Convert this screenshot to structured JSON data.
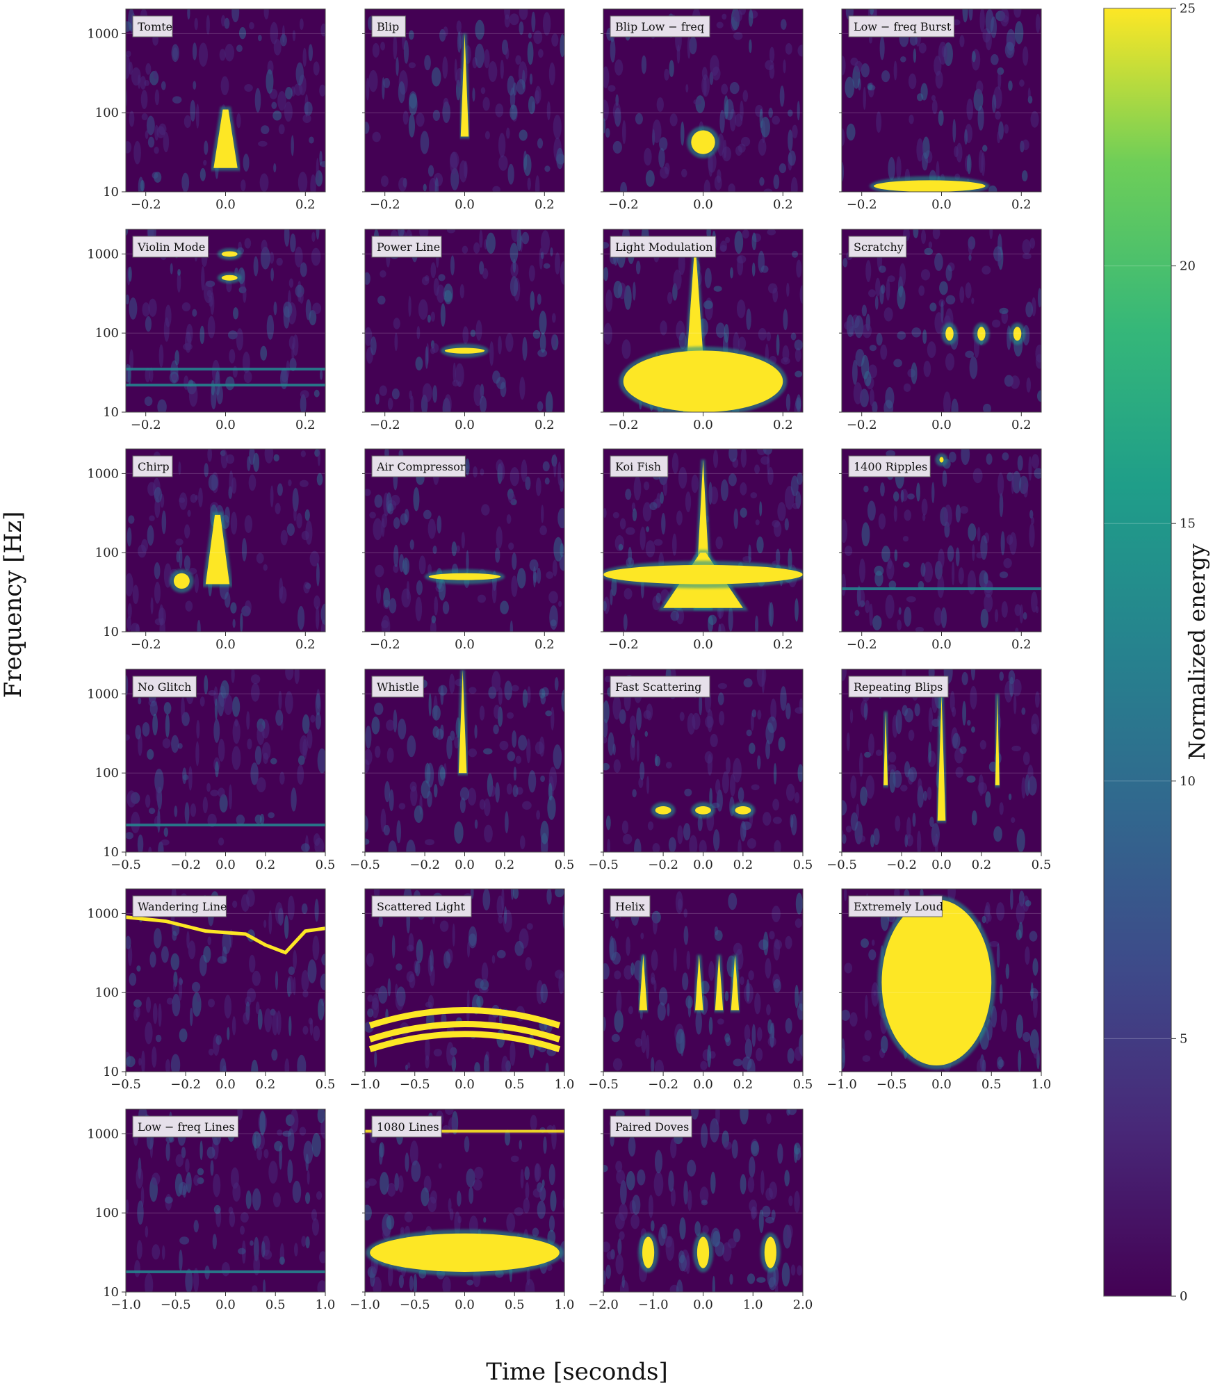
{
  "figure": {
    "xlabel": "Time [seconds]",
    "ylabel": "Frequency [Hz]",
    "colorbar": {
      "label": "Normalized energy",
      "range": [
        0,
        25
      ],
      "ticks": [
        "0",
        "5",
        "10",
        "15",
        "20",
        "25"
      ],
      "colormap": "viridis"
    },
    "colors": {
      "low": "#440154",
      "mid": "#21918c",
      "high": "#fde725"
    }
  },
  "chart_data": {
    "type": "heatmap",
    "yscale": "log",
    "ylim": [
      10,
      2048
    ],
    "yticks": [
      "10",
      "100",
      "1000"
    ],
    "grid": true,
    "panels": [
      {
        "label": "Tomte",
        "xticks": [
          "−0.2",
          "0.0",
          "0.2"
        ],
        "xlim": [
          -0.25,
          0.25
        ],
        "blobs": [
          {
            "t": 0.0,
            "f0": 20,
            "f1": 110,
            "w": 0.03,
            "shape": "tri"
          }
        ]
      },
      {
        "label": "Blip",
        "xticks": [
          "−0.2",
          "0.0",
          "0.2"
        ],
        "xlim": [
          -0.25,
          0.25
        ],
        "blobs": [
          {
            "t": 0.0,
            "f0": 50,
            "f1": 1000,
            "w": 0.01,
            "shape": "spike"
          }
        ]
      },
      {
        "label": "Blip Low − freq",
        "xticks": [
          "−0.2",
          "0.0",
          "0.2"
        ],
        "xlim": [
          -0.25,
          0.25
        ],
        "blobs": [
          {
            "t": 0.0,
            "f0": 30,
            "f1": 60,
            "w": 0.03,
            "shape": "ellipse"
          }
        ]
      },
      {
        "label": "Low − freq Burst",
        "xticks": [
          "−0.2",
          "0.0",
          "0.2"
        ],
        "xlim": [
          -0.25,
          0.25
        ],
        "blobs": [
          {
            "t": -0.03,
            "f0": 10,
            "f1": 14,
            "w": 0.14,
            "shape": "ellipse"
          }
        ]
      },
      {
        "label": "Violin Mode",
        "xticks": [
          "−0.2",
          "0.0",
          "0.2"
        ],
        "xlim": [
          -0.25,
          0.25
        ],
        "blobs": [
          {
            "t": 0.01,
            "f0": 950,
            "f1": 1050,
            "w": 0.02,
            "shape": "ellipse"
          },
          {
            "t": 0.01,
            "f0": 480,
            "f1": 520,
            "w": 0.02,
            "shape": "ellipse"
          }
        ],
        "lines": [
          35,
          22
        ]
      },
      {
        "label": "Power Line",
        "xticks": [
          "−0.2",
          "0.0",
          "0.2"
        ],
        "xlim": [
          -0.25,
          0.25
        ],
        "blobs": [
          {
            "t": 0.0,
            "f0": 55,
            "f1": 65,
            "w": 0.05,
            "shape": "ellipse"
          }
        ]
      },
      {
        "label": "Light Modulation",
        "xticks": [
          "−0.2",
          "0.0",
          "0.2"
        ],
        "xlim": [
          -0.25,
          0.25
        ],
        "blobs": [
          {
            "t": -0.02,
            "f0": 10,
            "f1": 1500,
            "w": 0.03,
            "shape": "spike"
          },
          {
            "t": 0.0,
            "f0": 10,
            "f1": 60,
            "w": 0.2,
            "shape": "ellipse"
          }
        ]
      },
      {
        "label": "Scratchy",
        "xticks": [
          "−0.2",
          "0.0",
          "0.2"
        ],
        "xlim": [
          -0.25,
          0.25
        ],
        "blobs": [
          {
            "t": 0.02,
            "f0": 80,
            "f1": 120,
            "w": 0.01,
            "shape": "ellipse"
          },
          {
            "t": 0.1,
            "f0": 80,
            "f1": 120,
            "w": 0.01,
            "shape": "ellipse"
          },
          {
            "t": 0.19,
            "f0": 80,
            "f1": 120,
            "w": 0.01,
            "shape": "ellipse"
          }
        ]
      },
      {
        "label": "Chirp",
        "xticks": [
          "−0.2",
          "0.0",
          "0.2"
        ],
        "xlim": [
          -0.25,
          0.25
        ],
        "blobs": [
          {
            "t": -0.02,
            "f0": 40,
            "f1": 300,
            "w": 0.03,
            "shape": "tri"
          },
          {
            "t": -0.11,
            "f0": 35,
            "f1": 55,
            "w": 0.02,
            "shape": "ellipse"
          }
        ]
      },
      {
        "label": "Air Compressor",
        "xticks": [
          "−0.2",
          "0.0",
          "0.2"
        ],
        "xlim": [
          -0.25,
          0.25
        ],
        "blobs": [
          {
            "t": 0.0,
            "f0": 45,
            "f1": 55,
            "w": 0.09,
            "shape": "ellipse"
          }
        ]
      },
      {
        "label": "Koi Fish",
        "xticks": [
          "−0.2",
          "0.0",
          "0.2"
        ],
        "xlim": [
          -0.25,
          0.25
        ],
        "blobs": [
          {
            "t": 0.0,
            "f0": 20,
            "f1": 1500,
            "w": 0.02,
            "shape": "spike"
          },
          {
            "t": 0.0,
            "f0": 20,
            "f1": 100,
            "w": 0.1,
            "shape": "tri"
          },
          {
            "t": 0.0,
            "f0": 40,
            "f1": 70,
            "w": 0.25,
            "shape": "ellipse"
          }
        ]
      },
      {
        "label": "1400 Ripples",
        "xticks": [
          "−0.2",
          "0.0",
          "0.2"
        ],
        "xlim": [
          -0.25,
          0.25
        ],
        "blobs": [
          {
            "t": 0.0,
            "f0": 1400,
            "f1": 1600,
            "w": 0.005,
            "shape": "ellipse"
          }
        ],
        "lines": [
          35
        ]
      },
      {
        "label": "No Glitch",
        "xticks": [
          "−0.5",
          "−0.2",
          "0.0",
          "0.2",
          "0.5"
        ],
        "xlim": [
          -0.5,
          0.5
        ],
        "blobs": [],
        "lines": [
          22
        ]
      },
      {
        "label": "Whistle",
        "xticks": [
          "−0.5",
          "−0.2",
          "0.0",
          "0.2",
          "0.5"
        ],
        "xlim": [
          -0.5,
          0.5
        ],
        "blobs": [
          {
            "t": -0.01,
            "f0": 100,
            "f1": 2000,
            "w": 0.02,
            "shape": "spike"
          }
        ]
      },
      {
        "label": "Fast Scattering",
        "xticks": [
          "−0.5",
          "−0.2",
          "0.0",
          "0.2",
          "0.5"
        ],
        "xlim": [
          -0.5,
          0.5
        ],
        "blobs": [
          {
            "t": -0.2,
            "f0": 30,
            "f1": 38,
            "w": 0.04,
            "shape": "ellipse"
          },
          {
            "t": 0.0,
            "f0": 30,
            "f1": 38,
            "w": 0.04,
            "shape": "ellipse"
          },
          {
            "t": 0.2,
            "f0": 30,
            "f1": 38,
            "w": 0.04,
            "shape": "ellipse"
          }
        ]
      },
      {
        "label": "Repeating Blips",
        "xticks": [
          "−0.5",
          "−0.2",
          "0.0",
          "0.2",
          "0.5"
        ],
        "xlim": [
          -0.5,
          0.5
        ],
        "blobs": [
          {
            "t": -0.28,
            "f0": 70,
            "f1": 600,
            "w": 0.01,
            "shape": "spike"
          },
          {
            "t": 0.0,
            "f0": 25,
            "f1": 1000,
            "w": 0.02,
            "shape": "spike"
          },
          {
            "t": 0.28,
            "f0": 70,
            "f1": 1000,
            "w": 0.01,
            "shape": "spike"
          }
        ]
      },
      {
        "label": "Wandering Line",
        "xticks": [
          "−0.5",
          "−0.2",
          "0.0",
          "0.2",
          "0.5"
        ],
        "xlim": [
          -0.5,
          0.5
        ],
        "blobs": [],
        "curve": [
          [
            -0.5,
            900
          ],
          [
            -0.3,
            800
          ],
          [
            -0.1,
            600
          ],
          [
            0.1,
            550
          ],
          [
            0.2,
            400
          ],
          [
            0.3,
            320
          ],
          [
            0.4,
            600
          ],
          [
            0.5,
            650
          ]
        ]
      },
      {
        "label": "Scattered Light",
        "xticks": [
          "−1.0",
          "−0.5",
          "0.0",
          "0.5",
          "1.0"
        ],
        "xlim": [
          -1,
          1
        ],
        "blobs": [],
        "arches": [
          [
            0.95,
            60
          ],
          [
            0.95,
            40
          ],
          [
            0.95,
            30
          ]
        ]
      },
      {
        "label": "Helix",
        "xticks": [
          "−0.5",
          "−0.2",
          "0.0",
          "0.2",
          "0.5"
        ],
        "xlim": [
          -0.5,
          0.5
        ],
        "blobs": [
          {
            "t": -0.3,
            "f0": 60,
            "f1": 300,
            "w": 0.02,
            "shape": "spike"
          },
          {
            "t": -0.02,
            "f0": 60,
            "f1": 300,
            "w": 0.02,
            "shape": "spike"
          },
          {
            "t": 0.08,
            "f0": 60,
            "f1": 300,
            "w": 0.02,
            "shape": "spike"
          },
          {
            "t": 0.16,
            "f0": 60,
            "f1": 300,
            "w": 0.02,
            "shape": "spike"
          }
        ]
      },
      {
        "label": "Extremely Loud",
        "xticks": [
          "−1.0",
          "−0.5",
          "0.0",
          "0.5",
          "1.0"
        ],
        "xlim": [
          -1,
          1
        ],
        "blobs": [
          {
            "t": -0.05,
            "f0": 12,
            "f1": 1500,
            "w": 0.55,
            "shape": "ellipse"
          }
        ]
      },
      {
        "label": "Low − freq Lines",
        "xticks": [
          "−1.0",
          "−0.5",
          "0.0",
          "0.5",
          "1.0"
        ],
        "xlim": [
          -1,
          1
        ],
        "blobs": [],
        "lines": [
          18
        ]
      },
      {
        "label": "1080 Lines",
        "xticks": [
          "−1.0",
          "−0.5",
          "0.0",
          "0.5",
          "1.0"
        ],
        "xlim": [
          -1,
          1
        ],
        "blobs": [
          {
            "t": 0.0,
            "f0": 18,
            "f1": 55,
            "w": 0.95,
            "shape": "ellipse"
          }
        ],
        "lines": [
          1080
        ]
      },
      {
        "label": "Paired Doves",
        "xticks": [
          "−2.0",
          "−1.0",
          "0.0",
          "1.0",
          "2.0"
        ],
        "xlim": [
          -2,
          2
        ],
        "blobs": [
          {
            "t": -1.1,
            "f0": 20,
            "f1": 50,
            "w": 0.12,
            "shape": "ellipse"
          },
          {
            "t": 0.0,
            "f0": 20,
            "f1": 50,
            "w": 0.12,
            "shape": "ellipse"
          },
          {
            "t": 1.35,
            "f0": 20,
            "f1": 50,
            "w": 0.12,
            "shape": "ellipse"
          }
        ]
      }
    ]
  }
}
